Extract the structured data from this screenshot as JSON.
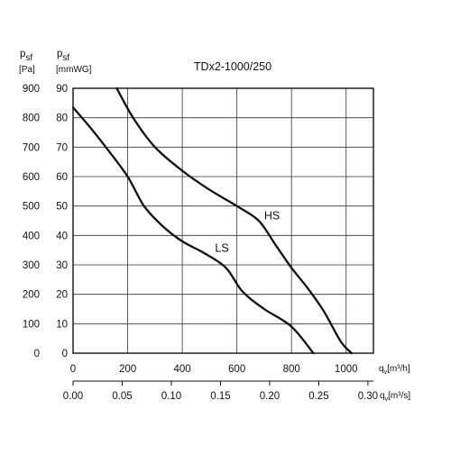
{
  "chart_data": {
    "type": "line",
    "title": "TDx2-1000/250",
    "y_axes": [
      {
        "symbol": "p",
        "subscript": "sf",
        "unit": "[Pa]",
        "ticks": [
          "0",
          "100",
          "200",
          "300",
          "400",
          "500",
          "600",
          "700",
          "800",
          "900"
        ],
        "ylim": [
          0,
          900
        ]
      },
      {
        "symbol": "p",
        "subscript": "sf",
        "unit": "[mmWG]",
        "ticks": [
          "0",
          "10",
          "20",
          "30",
          "40",
          "50",
          "60",
          "70",
          "80",
          "90"
        ],
        "ylim": [
          0,
          90
        ]
      }
    ],
    "x_axes": [
      {
        "symbol": "q",
        "subscript": "v",
        "unit": "[m³/h]",
        "ticks": [
          "0",
          "200",
          "400",
          "600",
          "800",
          "1000"
        ],
        "xlim": [
          0,
          1100
        ]
      },
      {
        "symbol": "q",
        "subscript": "v",
        "unit": "[m³/s]",
        "ticks": [
          "0.00",
          "0.05",
          "0.10",
          "0.15",
          "0.20",
          "0.25",
          "0.30"
        ],
        "xlim": [
          0,
          0.3056
        ]
      }
    ],
    "grid": true,
    "series": [
      {
        "name": "HS",
        "x": [
          160,
          220,
          300,
          400,
          500,
          600,
          680,
          740,
          800,
          860,
          920,
          980,
          1020
        ],
        "y": [
          900,
          800,
          700,
          620,
          555,
          500,
          450,
          370,
          290,
          220,
          140,
          40,
          0
        ]
      },
      {
        "name": "LS",
        "x": [
          0,
          60,
          120,
          200,
          260,
          330,
          400,
          480,
          560,
          620,
          700,
          800,
          880
        ],
        "y": [
          835,
          770,
          700,
          600,
          500,
          430,
          380,
          340,
          290,
          210,
          150,
          90,
          0
        ]
      }
    ]
  }
}
